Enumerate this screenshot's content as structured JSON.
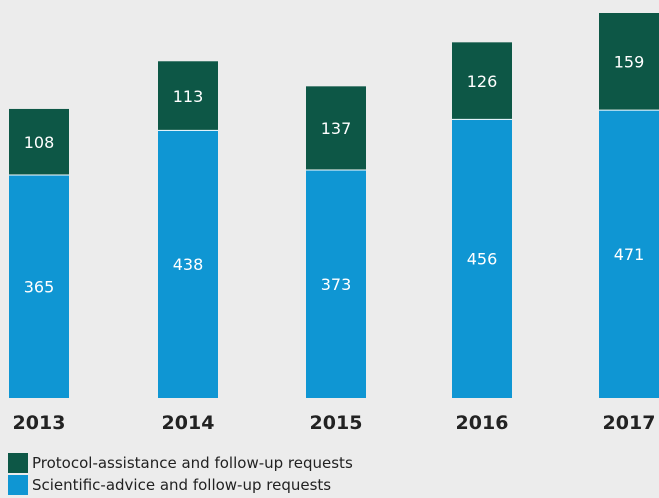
{
  "chart_data": {
    "type": "bar",
    "stacked": true,
    "categories": [
      "2013",
      "2014",
      "2015",
      "2016",
      "2017"
    ],
    "series": [
      {
        "name": "Scientific-advice and follow-up requests",
        "values": [
          365,
          438,
          373,
          456,
          471
        ],
        "color": "#0f96d3"
      },
      {
        "name": "Protocol-assistance and follow-up requests",
        "values": [
          108,
          113,
          137,
          126,
          159
        ],
        "color": "#0d5746"
      }
    ],
    "ylim": [
      0,
      630
    ],
    "grid": false,
    "legend_position": "bottom-left",
    "data_labels": true,
    "title": "",
    "xlabel": "",
    "ylabel": ""
  },
  "legend": {
    "items": [
      {
        "label": "Protocol-assistance and follow-up requests",
        "color": "#0d5746"
      },
      {
        "label": "Scientific-advice and follow-up requests",
        "color": "#0f96d3"
      }
    ]
  }
}
